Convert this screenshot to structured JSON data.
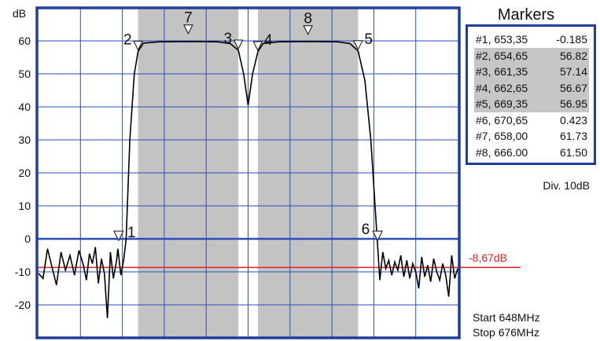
{
  "axis": {
    "unit": "dB",
    "y_ticks": [
      "60",
      "50",
      "40",
      "30",
      "20",
      "10",
      "0",
      "-10",
      "-20"
    ]
  },
  "markers_panel": {
    "title": "Markers",
    "rows": [
      {
        "id": "#1,",
        "freq": "653,35",
        "value": "-0.185",
        "highlight": false
      },
      {
        "id": "#2,",
        "freq": "654,65",
        "value": "56.82",
        "highlight": true
      },
      {
        "id": "#3,",
        "freq": "661,35",
        "value": "57.14",
        "highlight": true
      },
      {
        "id": "#4,",
        "freq": "662,65",
        "value": "56.67",
        "highlight": true
      },
      {
        "id": "#5,",
        "freq": "669,35",
        "value": "56.95",
        "highlight": true
      },
      {
        "id": "#6,",
        "freq": "670,65",
        "value": "0.423",
        "highlight": false
      },
      {
        "id": "#7,",
        "freq": "658,00",
        "value": "61.73",
        "highlight": false
      },
      {
        "id": "#8,",
        "freq": "666.00",
        "value": "61.50",
        "highlight": false
      }
    ]
  },
  "division": "Div. 10dB",
  "reference_level": "-8,67dB",
  "start": "Start 648MHz",
  "stop": "Stop 676MHz",
  "marker_labels": [
    "1",
    "2",
    "3",
    "4",
    "5",
    "6",
    "7",
    "8"
  ],
  "colors": {
    "frame": "#1f3f9a",
    "grid": "#2a4fb8",
    "passband_shade": "#c3c3c3",
    "trace": "#000000",
    "reference_line": "#e02020"
  },
  "chart_data": {
    "type": "line",
    "x_range_mhz": [
      648,
      676
    ],
    "y_range_db": [
      -30,
      70
    ],
    "shaded_bands_mhz": [
      [
        654.65,
        661.35
      ],
      [
        662.65,
        669.35
      ]
    ],
    "reference_db": -8.67,
    "series": [
      {
        "values_db": [
          [
            648.0,
            -10.5
          ],
          [
            648.3,
            -12.0
          ],
          [
            648.6,
            -3.0
          ],
          [
            648.9,
            -8.5
          ],
          [
            649.2,
            -14.0
          ],
          [
            649.5,
            -4.0
          ],
          [
            649.8,
            -9.5
          ],
          [
            650.1,
            -5.0
          ],
          [
            650.4,
            -11.0
          ],
          [
            650.7,
            -3.5
          ],
          [
            651.0,
            -8.0
          ],
          [
            651.2,
            -12.5
          ],
          [
            651.4,
            -4.5
          ],
          [
            651.6,
            -7.5
          ],
          [
            651.8,
            -2.5
          ],
          [
            652.0,
            -13.5
          ],
          [
            652.2,
            -6.0
          ],
          [
            652.4,
            -10.5
          ],
          [
            652.6,
            -24.0
          ],
          [
            652.8,
            -4.0
          ],
          [
            653.0,
            -12.0
          ],
          [
            653.2,
            -7.0
          ],
          [
            653.3,
            -3.0
          ],
          [
            653.5,
            -11.0
          ],
          [
            653.7,
            -6.0
          ],
          [
            653.85,
            0.0
          ],
          [
            654.1,
            30.0
          ],
          [
            654.4,
            50.0
          ],
          [
            654.65,
            56.82
          ],
          [
            655.0,
            59.3
          ],
          [
            656.0,
            59.7
          ],
          [
            658.0,
            59.8
          ],
          [
            660.0,
            59.7
          ],
          [
            660.8,
            59.2
          ],
          [
            661.35,
            57.14
          ],
          [
            661.7,
            50.0
          ],
          [
            662.0,
            40.5
          ],
          [
            662.3,
            50.0
          ],
          [
            662.65,
            56.67
          ],
          [
            663.0,
            59.2
          ],
          [
            664.0,
            59.7
          ],
          [
            666.0,
            59.8
          ],
          [
            668.0,
            59.7
          ],
          [
            668.8,
            59.2
          ],
          [
            669.35,
            56.95
          ],
          [
            669.8,
            48.0
          ],
          [
            670.2,
            30.0
          ],
          [
            670.55,
            5.0
          ],
          [
            670.8,
            -12.5
          ],
          [
            671.0,
            -4.0
          ],
          [
            671.2,
            -9.0
          ],
          [
            671.4,
            -6.5
          ],
          [
            671.6,
            -11.0
          ],
          [
            671.8,
            -7.0
          ],
          [
            672.0,
            -9.5
          ],
          [
            672.2,
            -5.0
          ],
          [
            672.4,
            -11.5
          ],
          [
            672.6,
            -6.5
          ],
          [
            672.8,
            -12.0
          ],
          [
            673.0,
            -7.5
          ],
          [
            673.2,
            -10.0
          ],
          [
            673.4,
            -15.0
          ],
          [
            673.6,
            -5.5
          ],
          [
            673.8,
            -11.5
          ],
          [
            674.0,
            -8.0
          ],
          [
            674.2,
            -13.0
          ],
          [
            674.4,
            -6.0
          ],
          [
            674.6,
            -10.0
          ],
          [
            674.8,
            -12.5
          ],
          [
            675.0,
            -7.5
          ],
          [
            675.2,
            -11.0
          ],
          [
            675.4,
            -17.5
          ],
          [
            675.6,
            -5.0
          ],
          [
            675.8,
            -12.0
          ],
          [
            676.0,
            -9.0
          ]
        ]
      }
    ],
    "markers": [
      {
        "id": "1",
        "x_mhz": 653.35,
        "y_db": -0.185,
        "label_pos": "right"
      },
      {
        "id": "2",
        "x_mhz": 654.65,
        "y_db": 56.82,
        "label_pos": "left"
      },
      {
        "id": "3",
        "x_mhz": 661.35,
        "y_db": 57.14,
        "label_pos": "left"
      },
      {
        "id": "4",
        "x_mhz": 662.65,
        "y_db": 56.67,
        "label_pos": "right"
      },
      {
        "id": "5",
        "x_mhz": 669.35,
        "y_db": 56.95,
        "label_pos": "right"
      },
      {
        "id": "6",
        "x_mhz": 670.65,
        "y_db": 0.423,
        "label_pos": "left"
      },
      {
        "id": "7",
        "x_mhz": 658.0,
        "y_db": 61.73,
        "label_pos": "above"
      },
      {
        "id": "8",
        "x_mhz": 666.0,
        "y_db": 61.5,
        "label_pos": "above"
      }
    ]
  }
}
